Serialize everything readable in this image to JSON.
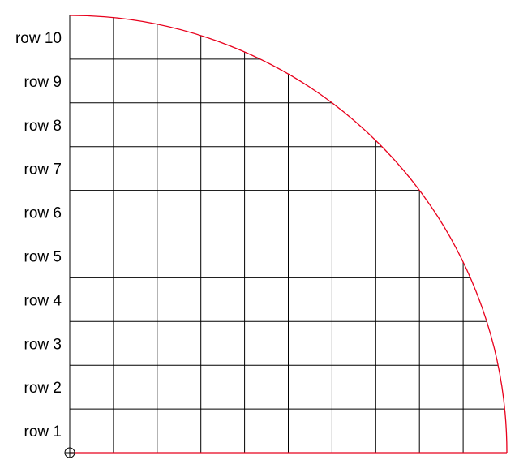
{
  "diagram": {
    "description_rows": 10,
    "columns": 10,
    "row_labels": [
      "row 1",
      "row 2",
      "row 3",
      "row 4",
      "row 5",
      "row 6",
      "row 7",
      "row 8",
      "row 9",
      "row 10"
    ],
    "colors": {
      "grid": "#000000",
      "arc": "#e8001c",
      "background": "#ffffff"
    },
    "origin_marker_icon": "crosshair-circle-icon"
  }
}
